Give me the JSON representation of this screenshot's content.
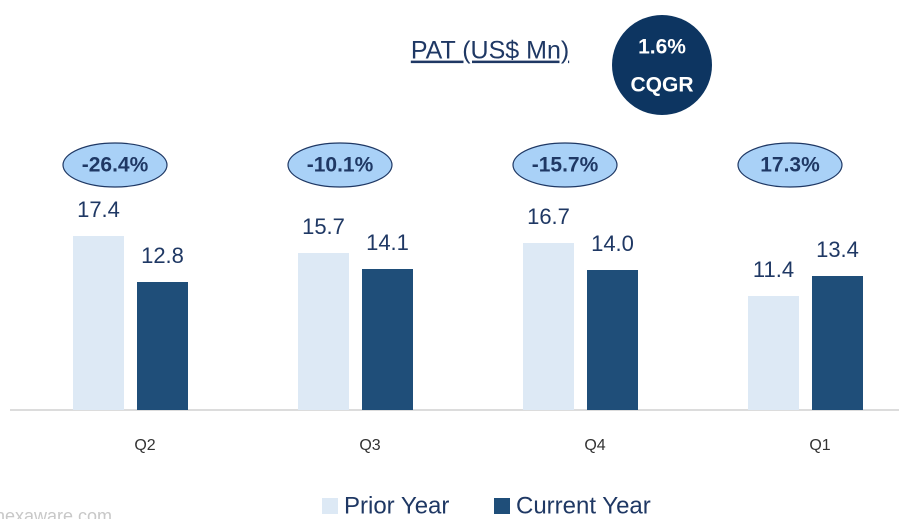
{
  "chart_data": {
    "type": "bar",
    "title": "PAT (US$ Mn)",
    "badge": {
      "value": "1.6%",
      "label": "CQGR"
    },
    "categories": [
      "Q2",
      "Q3",
      "Q4",
      "Q1"
    ],
    "series": [
      {
        "name": "Prior Year",
        "color": "#dde9f5",
        "values": [
          17.4,
          15.7,
          16.7,
          11.4
        ],
        "value_labels": [
          "17.4",
          "15.7",
          "16.7",
          "11.4"
        ]
      },
      {
        "name": "Current Year",
        "color": "#1f4e79",
        "values": [
          12.8,
          14.1,
          14.0,
          13.4
        ],
        "value_labels": [
          "12.8",
          "14.1",
          "14.0",
          "13.4"
        ]
      }
    ],
    "annotations": [
      "-26.4%",
      "-10.1%",
      "-15.7%",
      "17.3%"
    ],
    "annotation_color": "#a9d1f7",
    "watermark": "hexaware.com"
  }
}
